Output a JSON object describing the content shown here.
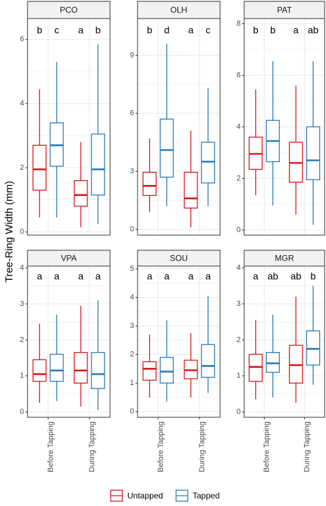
{
  "chart_data": {
    "type": "boxplot",
    "ylabel": "Tree-Ring Width (mm)",
    "categories": [
      "Before Tapping",
      "During Tapping"
    ],
    "legend": {
      "placement": "bottom",
      "entries": [
        {
          "name": "Untapped",
          "color": "#d7191c"
        },
        {
          "name": "Tapped",
          "color": "#2c7bb6"
        }
      ]
    },
    "colors": {
      "untapped": "#d7191c",
      "tapped": "#2c7bb6",
      "panel_border": "#333333",
      "strip_bg": "#f2f2f2",
      "grid": "#ebebeb"
    },
    "panels": [
      {
        "title": "PCO",
        "ylim": [
          -0.1,
          6.65
        ],
        "yticks": [
          0,
          2,
          4,
          6
        ],
        "letters": [
          "b",
          "c",
          "a",
          "b"
        ],
        "boxes": {
          "Before Tapping": {
            "Untapped": {
              "min": 0.45,
              "q1": 1.3,
              "median": 1.95,
              "q3": 2.7,
              "max": 4.45
            },
            "Tapped": {
              "min": 0.45,
              "q1": 2.05,
              "median": 2.7,
              "q3": 3.4,
              "max": 5.3
            }
          },
          "During Tapping": {
            "Untapped": {
              "min": 0.15,
              "q1": 0.8,
              "median": 1.15,
              "q3": 1.6,
              "max": 2.8
            },
            "Tapped": {
              "min": 0.25,
              "q1": 1.15,
              "median": 1.95,
              "q3": 3.05,
              "max": 5.85
            }
          }
        }
      },
      {
        "title": "OLH",
        "ylim": [
          -0.3,
          10.9
        ],
        "yticks": [
          0,
          3,
          6,
          9
        ],
        "letters": [
          "b",
          "d",
          "a",
          "c"
        ],
        "boxes": {
          "Before Tapping": {
            "Untapped": {
              "min": 0.9,
              "q1": 1.75,
              "median": 2.25,
              "q3": 2.95,
              "max": 4.7
            },
            "Tapped": {
              "min": 1.2,
              "q1": 2.7,
              "median": 4.1,
              "q3": 5.7,
              "max": 9.6
            }
          },
          "During Tapping": {
            "Untapped": {
              "min": 0.1,
              "q1": 1.1,
              "median": 1.6,
              "q3": 2.95,
              "max": 5.1
            },
            "Tapped": {
              "min": 1.2,
              "q1": 2.4,
              "median": 3.5,
              "q3": 4.5,
              "max": 7.3
            }
          }
        }
      },
      {
        "title": "PAT",
        "ylim": [
          -0.2,
          8.2
        ],
        "yticks": [
          0,
          2,
          4,
          6,
          8
        ],
        "letters": [
          "b",
          "b",
          "a",
          "ab"
        ],
        "boxes": {
          "Before Tapping": {
            "Untapped": {
              "min": 1.35,
              "q1": 2.35,
              "median": 2.95,
              "q3": 3.6,
              "max": 5.45
            },
            "Tapped": {
              "min": 0.95,
              "q1": 2.65,
              "median": 3.45,
              "q3": 4.25,
              "max": 6.55
            }
          },
          "During Tapping": {
            "Untapped": {
              "min": 0.6,
              "q1": 1.85,
              "median": 2.6,
              "q3": 3.4,
              "max": 5.6
            },
            "Tapped": {
              "min": 0.2,
              "q1": 1.95,
              "median": 2.7,
              "q3": 4.0,
              "max": 6.55
            }
          }
        }
      },
      {
        "title": "VPA",
        "ylim": [
          -0.15,
          4.05
        ],
        "yticks": [
          0,
          1,
          2,
          3,
          4
        ],
        "letters": [
          "a",
          "a",
          "a",
          "a"
        ],
        "boxes": {
          "Before Tapping": {
            "Untapped": {
              "min": 0.25,
              "q1": 0.85,
              "median": 1.05,
              "q3": 1.45,
              "max": 2.45
            },
            "Tapped": {
              "min": 0.3,
              "q1": 0.85,
              "median": 1.15,
              "q3": 1.6,
              "max": 2.7
            }
          },
          "During Tapping": {
            "Untapped": {
              "min": 0.15,
              "q1": 0.8,
              "median": 1.15,
              "q3": 1.65,
              "max": 2.95
            },
            "Tapped": {
              "min": 0.05,
              "q1": 0.65,
              "median": 1.05,
              "q3": 1.65,
              "max": 3.1
            }
          }
        }
      },
      {
        "title": "SOU",
        "ylim": [
          -0.2,
          5.1
        ],
        "yticks": [
          0,
          1,
          2,
          3,
          4,
          5
        ],
        "letters": [
          "a",
          "a",
          "a",
          "a"
        ],
        "boxes": {
          "Before Tapping": {
            "Untapped": {
              "min": 0.5,
              "q1": 1.1,
              "median": 1.5,
              "q3": 1.75,
              "max": 2.7
            },
            "Tapped": {
              "min": 0.35,
              "q1": 1.0,
              "median": 1.4,
              "q3": 1.9,
              "max": 3.2
            }
          },
          "During Tapping": {
            "Untapped": {
              "min": 0.5,
              "q1": 1.15,
              "median": 1.45,
              "q3": 1.8,
              "max": 2.75
            },
            "Tapped": {
              "min": 0.65,
              "q1": 1.2,
              "median": 1.6,
              "q3": 2.35,
              "max": 4.05
            }
          }
        }
      },
      {
        "title": "MGR",
        "ylim": [
          -0.15,
          4.05
        ],
        "yticks": [
          0,
          1,
          2,
          3,
          4
        ],
        "letters": [
          "a",
          "ab",
          "ab",
          "b"
        ],
        "boxes": {
          "Before Tapping": {
            "Untapped": {
              "min": 0.35,
              "q1": 0.85,
              "median": 1.25,
              "q3": 1.6,
              "max": 2.55
            },
            "Tapped": {
              "min": 0.4,
              "q1": 1.1,
              "median": 1.35,
              "q3": 1.65,
              "max": 2.7
            }
          },
          "During Tapping": {
            "Untapped": {
              "min": 0.25,
              "q1": 0.8,
              "median": 1.3,
              "q3": 1.85,
              "max": 3.2
            },
            "Tapped": {
              "min": 0.75,
              "q1": 1.3,
              "median": 1.75,
              "q3": 2.25,
              "max": 3.5
            }
          }
        }
      }
    ]
  }
}
